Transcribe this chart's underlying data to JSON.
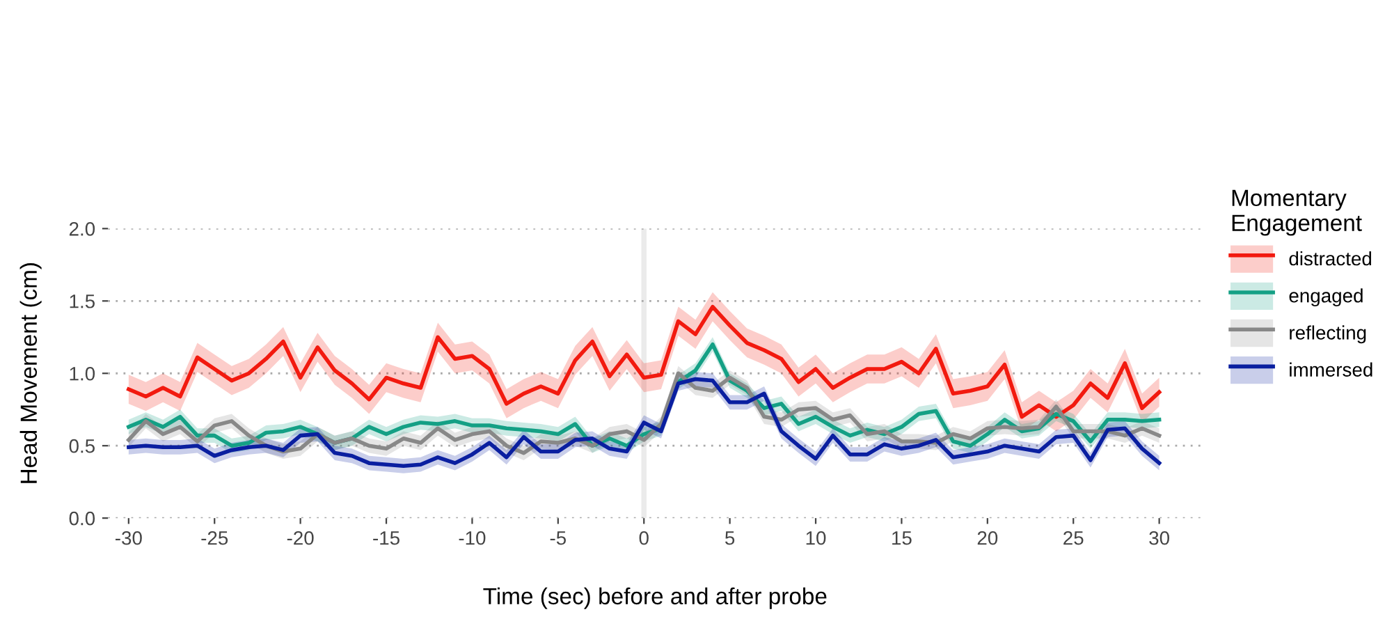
{
  "chart_data": {
    "type": "line",
    "xlabel": "Time (sec) before and after probe",
    "ylabel": "Head Movement (cm)",
    "legend_title": "Momentary\nEngagement",
    "x": [
      -30,
      -29,
      -28,
      -27,
      -26,
      -25,
      -24,
      -23,
      -22,
      -21,
      -20,
      -19,
      -18,
      -17,
      -16,
      -15,
      -14,
      -13,
      -12,
      -11,
      -10,
      -9,
      -8,
      -7,
      -6,
      -5,
      -4,
      -3,
      -2,
      -1,
      0,
      1,
      2,
      3,
      4,
      5,
      6,
      7,
      8,
      9,
      10,
      11,
      12,
      13,
      14,
      15,
      16,
      17,
      18,
      19,
      20,
      21,
      22,
      23,
      24,
      25,
      26,
      27,
      28,
      29,
      30
    ],
    "series": [
      {
        "name": "distracted",
        "color": "#f21a0f",
        "values": [
          0.89,
          0.84,
          0.9,
          0.84,
          1.11,
          1.03,
          0.95,
          1.0,
          1.1,
          1.22,
          0.97,
          1.18,
          1.02,
          0.93,
          0.82,
          0.97,
          0.93,
          0.9,
          1.25,
          1.1,
          1.12,
          1.03,
          0.79,
          0.86,
          0.91,
          0.86,
          1.09,
          1.22,
          0.98,
          1.13,
          0.97,
          0.99,
          1.36,
          1.27,
          1.46,
          1.33,
          1.21,
          1.16,
          1.1,
          0.94,
          1.03,
          0.9,
          0.97,
          1.03,
          1.03,
          1.08,
          1.0,
          1.17,
          0.86,
          0.88,
          0.91,
          1.06,
          0.7,
          0.78,
          0.7,
          0.78,
          0.93,
          0.83,
          1.07,
          0.76,
          0.87
        ],
        "lower": [
          0.79,
          0.74,
          0.8,
          0.74,
          1.01,
          0.93,
          0.85,
          0.9,
          1.0,
          1.12,
          0.87,
          1.08,
          0.92,
          0.83,
          0.72,
          0.87,
          0.83,
          0.8,
          1.15,
          1.0,
          1.02,
          0.93,
          0.69,
          0.76,
          0.81,
          0.76,
          0.99,
          1.12,
          0.88,
          1.03,
          0.87,
          0.89,
          1.26,
          1.17,
          1.36,
          1.23,
          1.11,
          1.06,
          1.0,
          0.84,
          0.93,
          0.8,
          0.87,
          0.93,
          0.93,
          0.98,
          0.9,
          1.07,
          0.76,
          0.78,
          0.81,
          0.96,
          0.6,
          0.68,
          0.6,
          0.68,
          0.83,
          0.73,
          0.97,
          0.66,
          0.77
        ],
        "upper": [
          0.99,
          0.94,
          1.0,
          0.94,
          1.21,
          1.13,
          1.05,
          1.1,
          1.2,
          1.32,
          1.07,
          1.28,
          1.12,
          1.03,
          0.92,
          1.07,
          1.03,
          1.0,
          1.35,
          1.2,
          1.22,
          1.13,
          0.89,
          0.96,
          1.01,
          0.96,
          1.19,
          1.32,
          1.08,
          1.23,
          1.07,
          1.09,
          1.46,
          1.37,
          1.56,
          1.43,
          1.31,
          1.26,
          1.2,
          1.04,
          1.13,
          1.0,
          1.07,
          1.13,
          1.13,
          1.18,
          1.1,
          1.27,
          0.96,
          0.98,
          1.01,
          1.16,
          0.8,
          0.88,
          0.8,
          0.88,
          1.03,
          0.93,
          1.17,
          0.86,
          0.97
        ]
      },
      {
        "name": "engaged",
        "color": "#14a085",
        "values": [
          0.63,
          0.68,
          0.63,
          0.7,
          0.57,
          0.57,
          0.5,
          0.52,
          0.59,
          0.6,
          0.63,
          0.58,
          0.52,
          0.55,
          0.63,
          0.58,
          0.63,
          0.66,
          0.65,
          0.67,
          0.64,
          0.64,
          0.62,
          0.61,
          0.6,
          0.58,
          0.65,
          0.5,
          0.55,
          0.5,
          0.58,
          0.62,
          0.94,
          1.02,
          1.2,
          0.95,
          0.88,
          0.76,
          0.79,
          0.65,
          0.7,
          0.63,
          0.57,
          0.61,
          0.58,
          0.63,
          0.72,
          0.74,
          0.53,
          0.5,
          0.58,
          0.68,
          0.6,
          0.62,
          0.72,
          0.67,
          0.53,
          0.68,
          0.68,
          0.67,
          0.68
        ],
        "lower": [
          0.58,
          0.63,
          0.58,
          0.65,
          0.52,
          0.52,
          0.45,
          0.47,
          0.54,
          0.55,
          0.58,
          0.53,
          0.47,
          0.5,
          0.58,
          0.53,
          0.58,
          0.61,
          0.6,
          0.62,
          0.59,
          0.59,
          0.57,
          0.56,
          0.55,
          0.53,
          0.6,
          0.45,
          0.5,
          0.45,
          0.53,
          0.57,
          0.89,
          0.97,
          1.15,
          0.9,
          0.83,
          0.71,
          0.74,
          0.6,
          0.65,
          0.58,
          0.52,
          0.56,
          0.53,
          0.58,
          0.67,
          0.69,
          0.48,
          0.45,
          0.53,
          0.63,
          0.55,
          0.57,
          0.67,
          0.62,
          0.48,
          0.63,
          0.63,
          0.62,
          0.63
        ],
        "upper": [
          0.68,
          0.73,
          0.68,
          0.75,
          0.62,
          0.62,
          0.55,
          0.57,
          0.64,
          0.65,
          0.68,
          0.63,
          0.57,
          0.6,
          0.68,
          0.63,
          0.68,
          0.71,
          0.7,
          0.72,
          0.69,
          0.69,
          0.67,
          0.66,
          0.65,
          0.63,
          0.7,
          0.55,
          0.6,
          0.55,
          0.63,
          0.67,
          0.99,
          1.07,
          1.25,
          1.0,
          0.93,
          0.81,
          0.84,
          0.7,
          0.75,
          0.68,
          0.62,
          0.66,
          0.63,
          0.68,
          0.77,
          0.79,
          0.58,
          0.55,
          0.63,
          0.73,
          0.65,
          0.67,
          0.77,
          0.72,
          0.58,
          0.73,
          0.73,
          0.72,
          0.73
        ]
      },
      {
        "name": "reflecting",
        "color": "#888888",
        "values": [
          0.54,
          0.67,
          0.58,
          0.63,
          0.53,
          0.64,
          0.67,
          0.57,
          0.5,
          0.46,
          0.48,
          0.58,
          0.52,
          0.55,
          0.5,
          0.48,
          0.55,
          0.52,
          0.62,
          0.54,
          0.58,
          0.6,
          0.5,
          0.45,
          0.53,
          0.52,
          0.55,
          0.5,
          0.58,
          0.6,
          0.54,
          0.65,
          1.0,
          0.9,
          0.88,
          0.97,
          0.9,
          0.7,
          0.68,
          0.75,
          0.76,
          0.68,
          0.71,
          0.58,
          0.6,
          0.53,
          0.53,
          0.52,
          0.58,
          0.55,
          0.62,
          0.63,
          0.62,
          0.63,
          0.77,
          0.6,
          0.6,
          0.6,
          0.57,
          0.62,
          0.57
        ],
        "lower": [
          0.49,
          0.62,
          0.53,
          0.58,
          0.48,
          0.59,
          0.62,
          0.52,
          0.45,
          0.41,
          0.43,
          0.53,
          0.47,
          0.5,
          0.45,
          0.43,
          0.5,
          0.47,
          0.57,
          0.49,
          0.53,
          0.55,
          0.45,
          0.4,
          0.48,
          0.47,
          0.5,
          0.45,
          0.53,
          0.55,
          0.49,
          0.6,
          0.95,
          0.85,
          0.83,
          0.92,
          0.85,
          0.65,
          0.63,
          0.7,
          0.71,
          0.63,
          0.66,
          0.53,
          0.55,
          0.48,
          0.48,
          0.47,
          0.53,
          0.5,
          0.57,
          0.58,
          0.57,
          0.58,
          0.72,
          0.55,
          0.55,
          0.55,
          0.52,
          0.57,
          0.52
        ],
        "upper": [
          0.59,
          0.72,
          0.63,
          0.68,
          0.58,
          0.69,
          0.72,
          0.62,
          0.55,
          0.51,
          0.53,
          0.63,
          0.57,
          0.6,
          0.55,
          0.53,
          0.6,
          0.57,
          0.67,
          0.59,
          0.63,
          0.65,
          0.55,
          0.5,
          0.58,
          0.57,
          0.6,
          0.55,
          0.63,
          0.65,
          0.59,
          0.7,
          1.05,
          0.95,
          0.93,
          1.02,
          0.95,
          0.75,
          0.73,
          0.8,
          0.81,
          0.73,
          0.76,
          0.63,
          0.65,
          0.58,
          0.58,
          0.57,
          0.63,
          0.6,
          0.67,
          0.68,
          0.67,
          0.68,
          0.82,
          0.65,
          0.65,
          0.65,
          0.62,
          0.67,
          0.62
        ]
      },
      {
        "name": "immersed",
        "color": "#0a1fa0",
        "values": [
          0.49,
          0.5,
          0.49,
          0.49,
          0.5,
          0.43,
          0.47,
          0.49,
          0.5,
          0.47,
          0.57,
          0.58,
          0.45,
          0.43,
          0.38,
          0.37,
          0.36,
          0.37,
          0.42,
          0.38,
          0.44,
          0.52,
          0.42,
          0.56,
          0.46,
          0.46,
          0.54,
          0.55,
          0.48,
          0.46,
          0.66,
          0.6,
          0.93,
          0.96,
          0.95,
          0.8,
          0.8,
          0.86,
          0.6,
          0.5,
          0.41,
          0.57,
          0.44,
          0.44,
          0.51,
          0.48,
          0.5,
          0.54,
          0.42,
          0.44,
          0.46,
          0.5,
          0.48,
          0.46,
          0.56,
          0.57,
          0.4,
          0.61,
          0.62,
          0.48,
          0.38
        ],
        "lower": [
          0.44,
          0.45,
          0.44,
          0.44,
          0.45,
          0.38,
          0.42,
          0.44,
          0.45,
          0.42,
          0.52,
          0.53,
          0.4,
          0.38,
          0.33,
          0.32,
          0.31,
          0.32,
          0.37,
          0.33,
          0.39,
          0.47,
          0.37,
          0.51,
          0.41,
          0.41,
          0.49,
          0.5,
          0.43,
          0.41,
          0.61,
          0.55,
          0.88,
          0.91,
          0.9,
          0.75,
          0.75,
          0.81,
          0.55,
          0.45,
          0.36,
          0.52,
          0.39,
          0.39,
          0.46,
          0.43,
          0.45,
          0.49,
          0.37,
          0.39,
          0.41,
          0.45,
          0.43,
          0.41,
          0.51,
          0.52,
          0.35,
          0.56,
          0.57,
          0.43,
          0.33
        ],
        "upper": [
          0.54,
          0.55,
          0.54,
          0.54,
          0.55,
          0.48,
          0.52,
          0.54,
          0.55,
          0.52,
          0.62,
          0.63,
          0.5,
          0.48,
          0.43,
          0.42,
          0.41,
          0.42,
          0.47,
          0.43,
          0.49,
          0.57,
          0.47,
          0.61,
          0.51,
          0.51,
          0.59,
          0.6,
          0.53,
          0.51,
          0.71,
          0.65,
          0.98,
          1.01,
          1.0,
          0.85,
          0.85,
          0.91,
          0.65,
          0.55,
          0.46,
          0.62,
          0.49,
          0.49,
          0.56,
          0.53,
          0.55,
          0.59,
          0.47,
          0.49,
          0.51,
          0.55,
          0.53,
          0.51,
          0.61,
          0.62,
          0.45,
          0.66,
          0.67,
          0.53,
          0.43
        ]
      }
    ],
    "bands": [
      {
        "axis": "x",
        "from": -0.15,
        "to": 0.15,
        "color": "#ebebeb"
      }
    ],
    "xlim": [
      -31.2,
      32.5
    ],
    "ylim": [
      0,
      2.0
    ],
    "xticks": [
      -30,
      -25,
      -20,
      -15,
      -10,
      -5,
      0,
      5,
      10,
      15,
      20,
      25,
      30
    ],
    "yticks": [
      {
        "value": 0,
        "label": "0.0"
      },
      {
        "value": 0.5,
        "label": "0.5"
      },
      {
        "value": 1.0,
        "label": "1.0"
      },
      {
        "value": 1.5,
        "label": "1.5"
      },
      {
        "value": 2.0,
        "label": "2.0"
      }
    ],
    "grid": "y",
    "legend": "right",
    "marker": "none",
    "line_style": "solid"
  }
}
